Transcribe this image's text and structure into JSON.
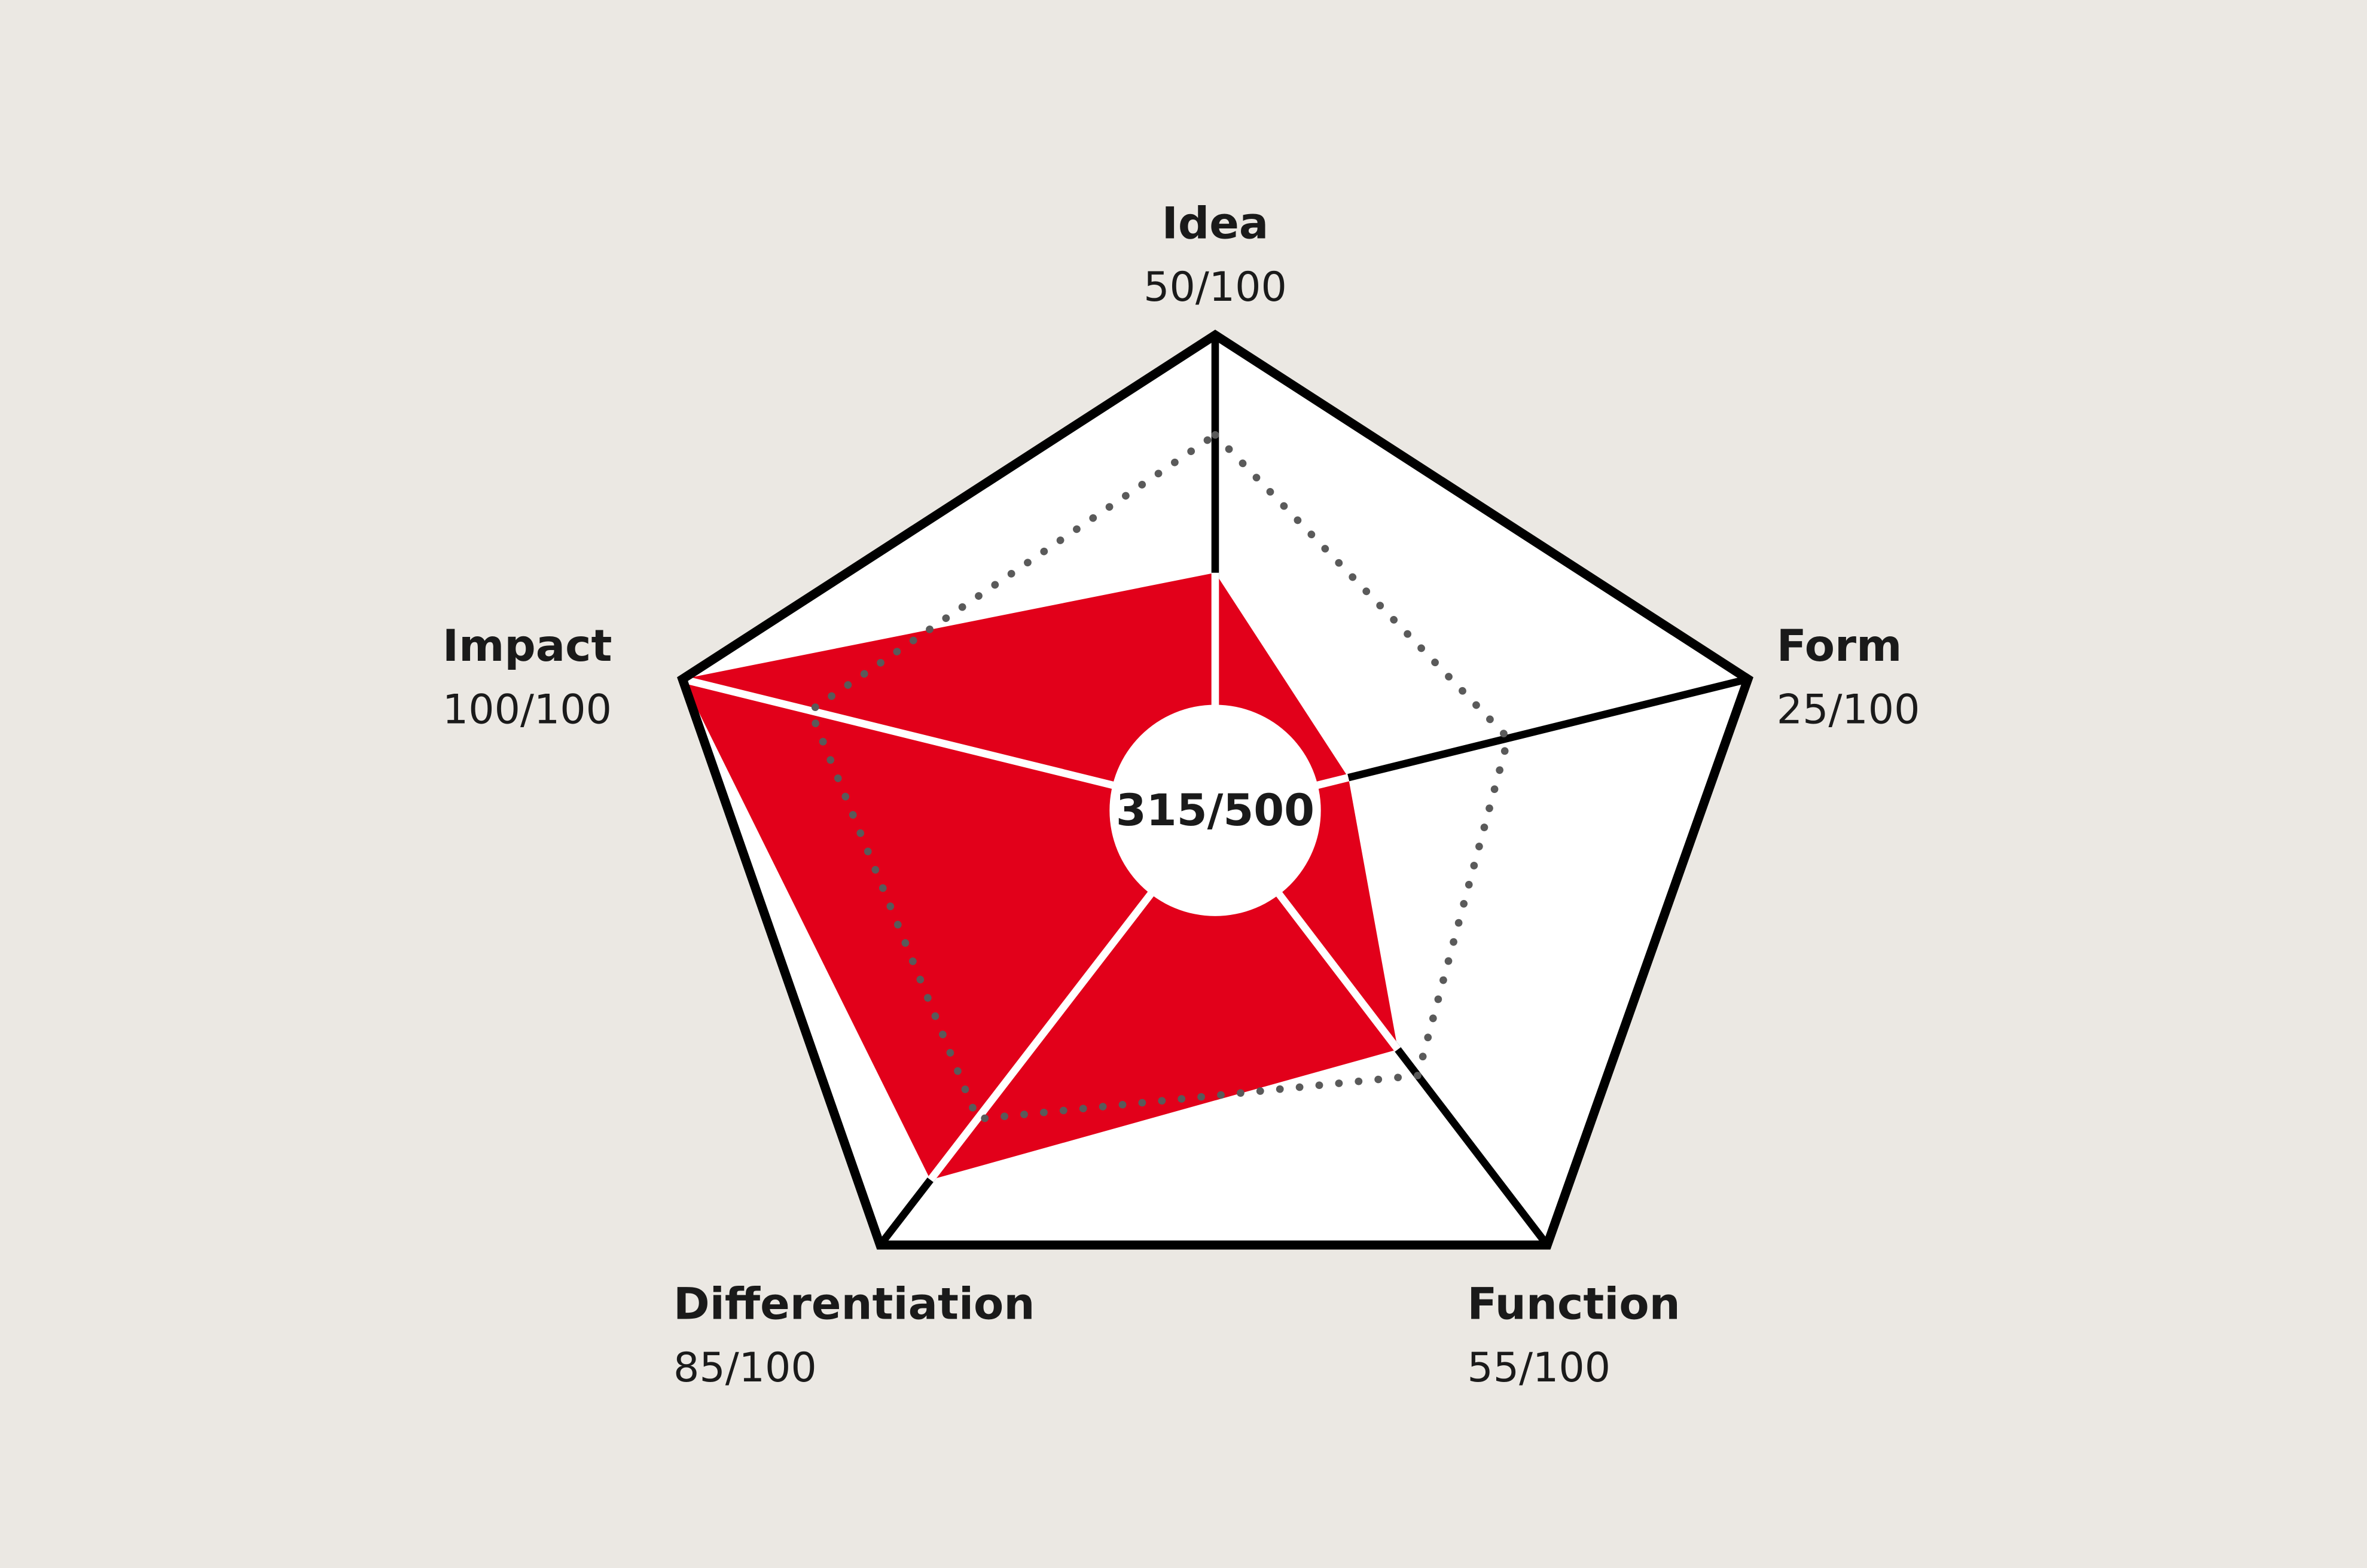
{
  "chart_data": {
    "type": "radar",
    "categories": [
      "Idea",
      "Form",
      "Function",
      "Differentiation",
      "Impact"
    ],
    "series": [
      {
        "color": "#e2001a",
        "values": [
          50,
          25,
          55,
          85,
          100
        ],
        "value_labels": [
          "50/100",
          "25/100",
          "55/100",
          "85/100",
          "100/100"
        ]
      },
      {
        "color": "#5a5a5a",
        "style": "dotted",
        "values": [
          79,
          55,
          61,
          71,
          76
        ]
      }
    ],
    "center_label": "315/500",
    "rlim": [
      0,
      100
    ]
  }
}
